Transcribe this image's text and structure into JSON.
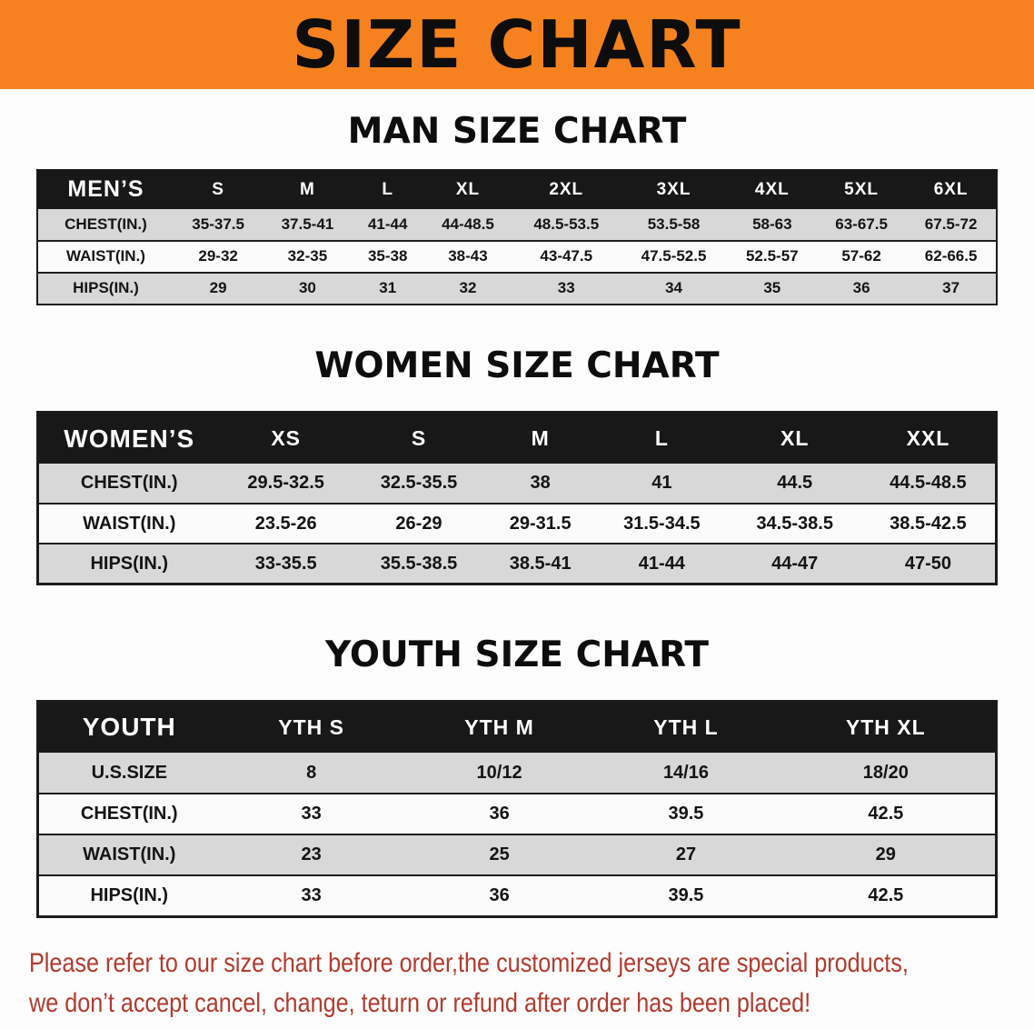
{
  "banner": {
    "title": "SIZE CHART",
    "background_color": "#F5821F",
    "text_color": "#0D0D0D"
  },
  "sections": [
    {
      "id": "men",
      "heading": "MAN SIZE CHART",
      "table": {
        "header": [
          "MEN’S",
          "S",
          "M",
          "L",
          "XL",
          "2XL",
          "3XL",
          "4XL",
          "5XL",
          "6XL"
        ],
        "rows": [
          [
            "CHEST(IN.)",
            "35-37.5",
            "37.5-41",
            "41-44",
            "44-48.5",
            "48.5-53.5",
            "53.5-58",
            "58-63",
            "63-67.5",
            "67.5-72"
          ],
          [
            "WAIST(IN.)",
            "29-32",
            "32-35",
            "35-38",
            "38-43",
            "43-47.5",
            "47.5-52.5",
            "52.5-57",
            "57-62",
            "62-66.5"
          ],
          [
            "HIPS(IN.)",
            "29",
            "30",
            "31",
            "32",
            "33",
            "34",
            "35",
            "36",
            "37"
          ]
        ]
      }
    },
    {
      "id": "women",
      "heading": "WOMEN SIZE CHART",
      "table": {
        "header": [
          "WOMEN’S",
          "XS",
          "S",
          "M",
          "L",
          "XL",
          "XXL"
        ],
        "rows": [
          [
            "CHEST(IN.)",
            "29.5-32.5",
            "32.5-35.5",
            "38",
            "41",
            "44.5",
            "44.5-48.5"
          ],
          [
            "WAIST(IN.)",
            "23.5-26",
            "26-29",
            "29-31.5",
            "31.5-34.5",
            "34.5-38.5",
            "38.5-42.5"
          ],
          [
            "HIPS(IN.)",
            "33-35.5",
            "35.5-38.5",
            "38.5-41",
            "41-44",
            "44-47",
            "47-50"
          ]
        ]
      }
    },
    {
      "id": "youth",
      "heading": "YOUTH SIZE CHART",
      "table": {
        "header": [
          "YOUTH",
          "YTH S",
          "YTH M",
          "YTH L",
          "YTH XL"
        ],
        "rows": [
          [
            "U.S.SIZE",
            "8",
            "10/12",
            "14/16",
            "18/20"
          ],
          [
            "CHEST(IN.)",
            "33",
            "36",
            "39.5",
            "42.5"
          ],
          [
            "WAIST(IN.)",
            "23",
            "25",
            "27",
            "29"
          ],
          [
            "HIPS(IN.)",
            "33",
            "36",
            "39.5",
            "42.5"
          ]
        ]
      }
    }
  ],
  "disclaimer": {
    "line1": "Please refer to our size chart before order,the customized jerseys are special products,",
    "line2": "we don’t accept cancel, change, teturn or refund after order has been placed!",
    "text_color": "#B13A2E"
  },
  "colors": {
    "table_header_bg": "#181818",
    "table_header_text": "#FFFFFF",
    "stripe_row_bg": "#D8D8D8",
    "table_border": "#1B1B1B",
    "page_background": "#FDFDFD"
  }
}
